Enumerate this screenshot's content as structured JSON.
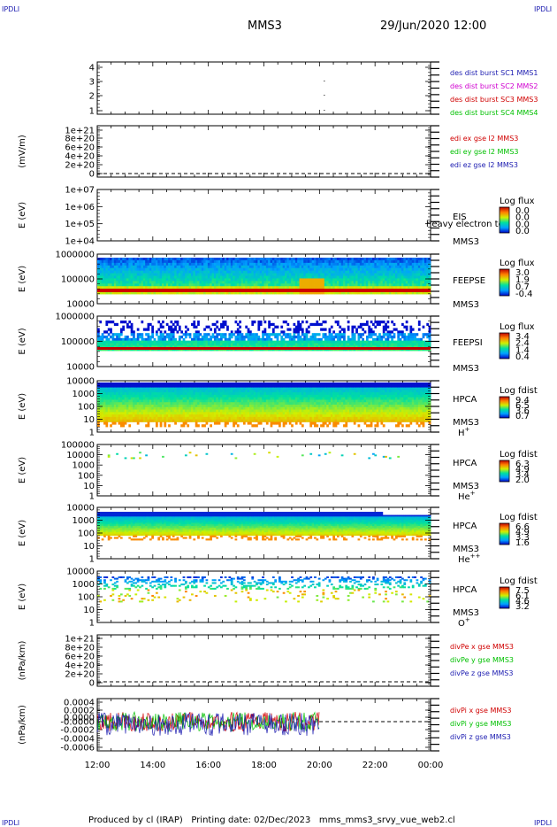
{
  "header": {
    "logo_left": "IPDLI",
    "logo_right": "IPDLI",
    "title": "MMS3",
    "datetime": "29/Jun/2020 12:00",
    "logo_bottom_left": "IPDLI",
    "logo_bottom_right": "IPDLI"
  },
  "footer": {
    "produced_by": "Produced by cl (IRAP)",
    "printing_date": "Printing date: 02/Dec/2023",
    "file_name": "mms_mms3_srvy_vue_web2.cl"
  },
  "colors": {
    "mms1": "#1b1bb0",
    "mms2": "#d000d0",
    "mms3": "#d00000",
    "mms4": "#00c000",
    "x_comp": "#d00000",
    "y_comp": "#00c000",
    "z_comp": "#1b1bb0"
  },
  "chart_data": [
    {
      "type": "scatter",
      "panel": "burst",
      "yticks": [
        "1",
        "2",
        "3",
        "4"
      ],
      "ylim": [
        0.5,
        4.5
      ],
      "legend": [
        "des dist burst SC1 MMS1",
        "des dist burst SC2 MMS2",
        "des dist burst SC3 MMS3",
        "des dist burst SC4 MMS4"
      ]
    },
    {
      "type": "line",
      "panel": "edi",
      "ylabel": "(mV/m)",
      "yticks": [
        "0",
        "2e+20",
        "4e+20",
        "6e+20",
        "8e+20",
        "1e+21"
      ],
      "ylim": [
        0,
        1e+21
      ],
      "legend": [
        "edi ex gse l2 MMS3",
        "edi ey gse l2 MMS3",
        "edi ez gse l2 MMS3"
      ]
    },
    {
      "type": "heatmap",
      "panel": "eis",
      "ylabel": "E (eV)",
      "yticks": [
        "1e+04",
        "1e+05",
        "1e+06",
        "1e+07"
      ],
      "ylim": [
        10000.0,
        10000000.0
      ],
      "label": "EIS",
      "label2": "MMS3",
      "overlay_text": "heavy electron to",
      "colorbar_title": "Log flux",
      "colorbar_ticks": [
        "0.0",
        "0.0",
        "0.0",
        "0.0"
      ]
    },
    {
      "type": "heatmap",
      "panel": "feepse",
      "ylabel": "E (eV)",
      "yticks": [
        "10000",
        "100000",
        "1000000"
      ],
      "ylim": [
        10000.0,
        1000000.0
      ],
      "label": "FEEPSE",
      "label2": "MMS3",
      "colorbar_title": "Log flux",
      "colorbar_ticks": [
        "3.0",
        "1.9",
        "0.7",
        "-0.4"
      ]
    },
    {
      "type": "heatmap",
      "panel": "feepsi",
      "ylabel": "E (eV)",
      "yticks": [
        "10000",
        "100000",
        "1000000"
      ],
      "ylim": [
        10000.0,
        1000000.0
      ],
      "label": "FEEPSI",
      "label2": "MMS3",
      "colorbar_title": "Log flux",
      "colorbar_ticks": [
        "3.4",
        "2.4",
        "1.4",
        "0.4"
      ]
    },
    {
      "type": "heatmap",
      "panel": "hpca_h",
      "ylabel": "E (eV)",
      "yticks": [
        "1",
        "10",
        "100",
        "1000",
        "10000"
      ],
      "ylim": [
        1,
        30000
      ],
      "label": "HPCA",
      "label2": "MMS3",
      "species": "H",
      "species_sup": "+",
      "colorbar_title": "Log fdist",
      "colorbar_ticks": [
        "9.4",
        "6.5",
        "3.6",
        "0.7"
      ]
    },
    {
      "type": "heatmap",
      "panel": "hpca_he",
      "ylabel": "E (eV)",
      "yticks": [
        "1",
        "10",
        "100",
        "1000",
        "10000",
        "100000"
      ],
      "ylim": [
        1,
        100000
      ],
      "label": "HPCA",
      "label2": "MMS3",
      "species": "He",
      "species_sup": "+",
      "colorbar_title": "Log fdist",
      "colorbar_ticks": [
        "6.3",
        "4.9",
        "3.4",
        "2.0"
      ]
    },
    {
      "type": "heatmap",
      "panel": "hpca_hepp",
      "ylabel": "E (eV)",
      "yticks": [
        "1",
        "10",
        "100",
        "1000",
        "10000"
      ],
      "ylim": [
        1,
        30000
      ],
      "label": "HPCA",
      "label2": "MMS3",
      "species": "He",
      "species_sup": "++",
      "colorbar_title": "Log fdist",
      "colorbar_ticks": [
        "6.6",
        "4.9",
        "3.3",
        "1.6"
      ]
    },
    {
      "type": "heatmap",
      "panel": "hpca_o",
      "ylabel": "E (eV)",
      "yticks": [
        "1",
        "10",
        "100",
        "1000",
        "10000"
      ],
      "ylim": [
        1,
        30000
      ],
      "label": "HPCA",
      "label2": "MMS3",
      "species": "O",
      "species_sup": "+",
      "colorbar_title": "Log fdist",
      "colorbar_ticks": [
        "7.5",
        "6.1",
        "4.6",
        "3.2"
      ]
    },
    {
      "type": "line",
      "panel": "divpe",
      "ylabel": "(nPa/km)",
      "yticks": [
        "0",
        "2e+20",
        "4e+20",
        "6e+20",
        "8e+20",
        "1e+21"
      ],
      "ylim": [
        0,
        1e+21
      ],
      "legend": [
        "divPe x gse MMS3",
        "divPe y gse MMS3",
        "divPe z gse MMS3"
      ]
    },
    {
      "type": "line",
      "panel": "divpi",
      "ylabel": "(nPa/km)",
      "yticks": [
        "-0.0006",
        "-0.0004",
        "-0.0002",
        "-0.0000",
        "0.0000",
        "0.0002",
        "0.0004"
      ],
      "ylim": [
        -0.0007,
        0.0005
      ],
      "legend": [
        "divPi x gse MMS3",
        "divPi y gse MMS3",
        "divPi z gse MMS3"
      ]
    }
  ],
  "xaxis": {
    "ticks": [
      "12:00",
      "14:00",
      "16:00",
      "18:00",
      "20:00",
      "22:00",
      "00:00"
    ]
  }
}
